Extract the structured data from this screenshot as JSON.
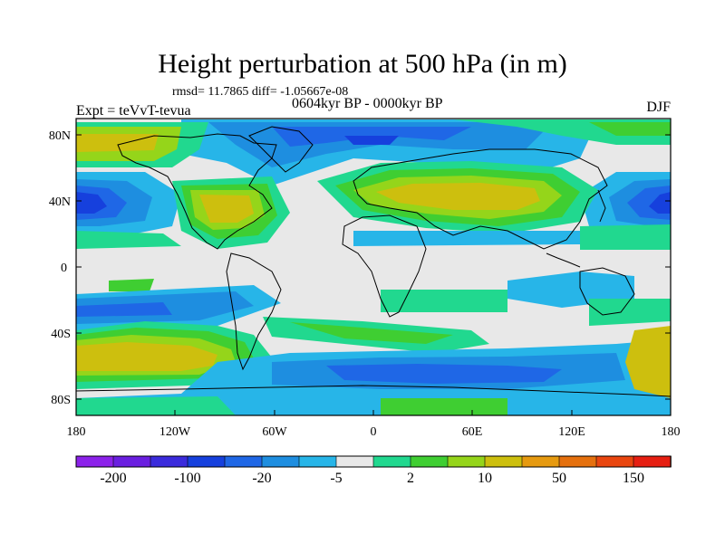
{
  "figure": {
    "title": "Height perturbation at 500 hPa (in m)",
    "stats": "rmsd= 11.7865 diff= -1.05667e-08",
    "period": "0604kyr BP - 0000kyr BP",
    "experiment": "Expt = teVvT-tevua",
    "season": "DJF"
  },
  "axes": {
    "y_ticks": [
      "80N",
      "40N",
      "0",
      "40S",
      "80S"
    ],
    "x_ticks": [
      "180",
      "120W",
      "60W",
      "0",
      "60E",
      "120E",
      "180"
    ]
  },
  "colorbar": {
    "colors": [
      "#8c22ea",
      "#6a1fe0",
      "#3b2bdc",
      "#1640dd",
      "#1f67e6",
      "#1e8ee0",
      "#27b5e8",
      "#e8e8e8",
      "#21d88f",
      "#3fce32",
      "#95d51a",
      "#cdbf0e",
      "#e69a10",
      "#e5700e",
      "#e9460f",
      "#e61f12"
    ],
    "labels": [
      "-200",
      "-100",
      "-20",
      "-5",
      "2",
      "10",
      "50",
      "150"
    ]
  },
  "map": {
    "background_value_color": "#e8e8e8",
    "coastline_color": "#000000"
  }
}
